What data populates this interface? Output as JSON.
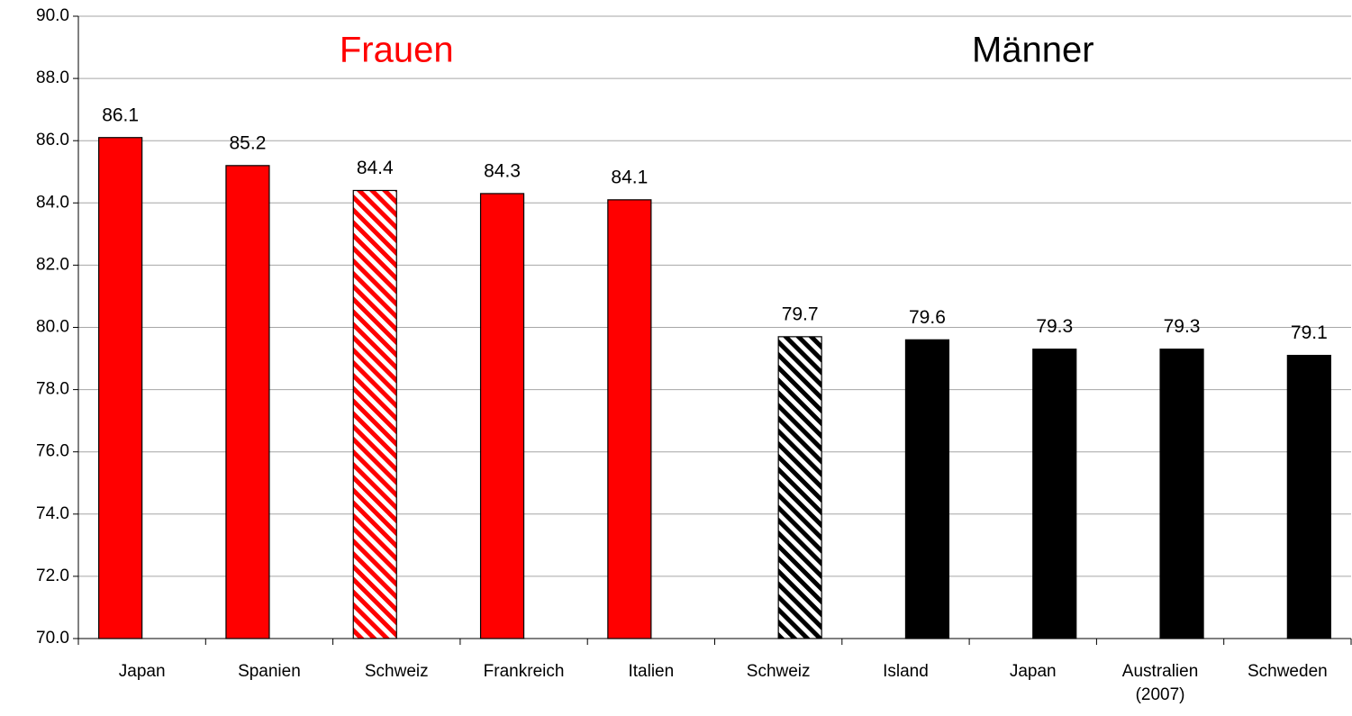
{
  "chart_data": {
    "type": "bar",
    "categories": [
      "Japan",
      "Spanien",
      "Schweiz",
      "Frankreich",
      "Italien",
      "Schweiz",
      "Island",
      "Japan",
      "Australien\n(2007)",
      "Schweden"
    ],
    "series": [
      {
        "name": "Frauen",
        "color": "#ff0000",
        "values": [
          86.1,
          85.2,
          84.4,
          84.3,
          84.1,
          null,
          null,
          null,
          null,
          null
        ],
        "hatched": [
          2
        ]
      },
      {
        "name": "Männer",
        "color": "#000000",
        "values": [
          null,
          null,
          null,
          null,
          null,
          79.7,
          79.6,
          79.3,
          79.3,
          79.1
        ],
        "hatched": [
          5
        ]
      }
    ],
    "ylim": [
      70,
      90
    ],
    "yticks": [
      {
        "value": 70,
        "label": "70.0"
      },
      {
        "value": 72,
        "label": "72.0"
      },
      {
        "value": 74,
        "label": "74.0"
      },
      {
        "value": 76,
        "label": "76.0"
      },
      {
        "value": 78,
        "label": "78.0"
      },
      {
        "value": 80,
        "label": "80.0"
      },
      {
        "value": 82,
        "label": "82.0"
      },
      {
        "value": 84,
        "label": "84.0"
      },
      {
        "value": 86,
        "label": "86.0"
      },
      {
        "value": 88,
        "label": "88.0"
      },
      {
        "value": 90,
        "label": "90.0"
      }
    ],
    "grid": true,
    "annotations": [
      {
        "text": "Frauen",
        "color": "#ff0000",
        "category": 2
      },
      {
        "text": "Männer",
        "color": "#000000",
        "category": 7
      }
    ]
  }
}
